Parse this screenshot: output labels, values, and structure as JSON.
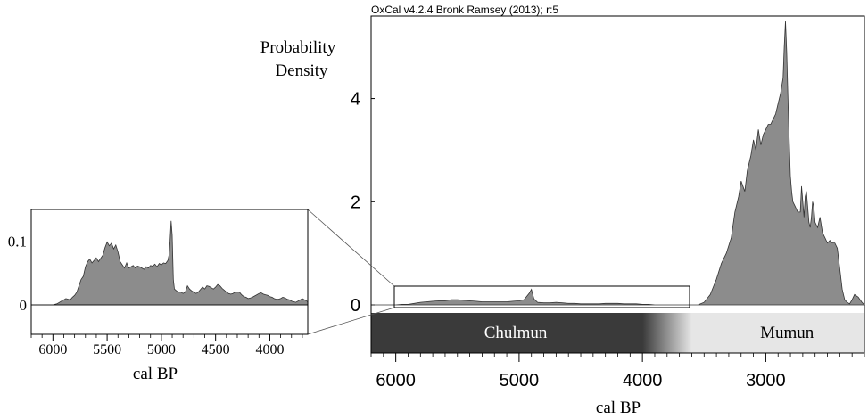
{
  "header": "OxCal v4.2.4 Bronk Ramsey (2013); r:5",
  "colors": {
    "fill": "#8c8c8c",
    "outline": "#333333",
    "chulmun_band": "#3a3a3a",
    "mumun_band": "#e6e6e6",
    "axis": "#000000"
  },
  "chart_data": [
    {
      "type": "area",
      "ylabel": "Probability\nDensity",
      "xlabel": "cal BP",
      "xlim": [
        6200,
        2200
      ],
      "ylim": [
        0,
        5.6
      ],
      "x_reversed": true,
      "x_ticks": [
        6000,
        5000,
        4000,
        3000
      ],
      "y_ticks": [
        0,
        2,
        4
      ],
      "x": [
        6200,
        6100,
        6000,
        5950,
        5900,
        5850,
        5800,
        5750,
        5700,
        5650,
        5600,
        5550,
        5500,
        5450,
        5400,
        5350,
        5300,
        5250,
        5200,
        5150,
        5100,
        5050,
        5000,
        4960,
        4920,
        4900,
        4880,
        4850,
        4800,
        4750,
        4700,
        4650,
        4600,
        4550,
        4500,
        4450,
        4400,
        4350,
        4300,
        4250,
        4200,
        4150,
        4100,
        4050,
        4000,
        3950,
        3900,
        3850,
        3800,
        3750,
        3700,
        3650,
        3600,
        3550,
        3500,
        3450,
        3400,
        3360,
        3320,
        3280,
        3250,
        3220,
        3200,
        3170,
        3150,
        3120,
        3100,
        3080,
        3060,
        3040,
        3020,
        3000,
        2980,
        2960,
        2940,
        2920,
        2900,
        2880,
        2860,
        2850,
        2840,
        2830,
        2820,
        2810,
        2800,
        2790,
        2780,
        2760,
        2740,
        2720,
        2710,
        2700,
        2690,
        2680,
        2670,
        2660,
        2650,
        2640,
        2630,
        2620,
        2610,
        2600,
        2580,
        2560,
        2540,
        2520,
        2500,
        2480,
        2460,
        2440,
        2420,
        2400,
        2380,
        2360,
        2340,
        2320,
        2300,
        2280,
        2250,
        2220,
        2200
      ],
      "values": [
        0.0,
        0.0,
        0.0,
        0.01,
        0.01,
        0.03,
        0.05,
        0.06,
        0.07,
        0.08,
        0.08,
        0.1,
        0.1,
        0.09,
        0.08,
        0.07,
        0.06,
        0.06,
        0.06,
        0.06,
        0.06,
        0.07,
        0.08,
        0.1,
        0.22,
        0.3,
        0.12,
        0.05,
        0.04,
        0.04,
        0.05,
        0.04,
        0.03,
        0.03,
        0.02,
        0.02,
        0.02,
        0.02,
        0.03,
        0.03,
        0.03,
        0.02,
        0.02,
        0.02,
        0.01,
        0.01,
        0.0,
        0.0,
        0.0,
        0.0,
        0.0,
        0.0,
        0.0,
        0.0,
        0.05,
        0.2,
        0.5,
        0.8,
        1.0,
        1.3,
        1.8,
        2.1,
        2.4,
        2.2,
        2.6,
        2.9,
        3.2,
        3.0,
        3.4,
        3.1,
        3.3,
        3.4,
        3.5,
        3.5,
        3.6,
        3.7,
        3.9,
        4.1,
        4.4,
        5.0,
        5.5,
        4.9,
        4.0,
        3.2,
        2.5,
        2.2,
        2.0,
        1.9,
        1.8,
        1.8,
        2.3,
        2.0,
        1.7,
        2.1,
        2.2,
        1.9,
        1.6,
        1.5,
        1.7,
        2.0,
        1.9,
        1.6,
        1.5,
        1.7,
        1.4,
        1.3,
        1.2,
        1.25,
        1.2,
        1.2,
        1.1,
        0.7,
        0.3,
        0.1,
        0.05,
        0.02,
        0.1,
        0.2,
        0.15,
        0.05,
        0.0
      ]
    },
    {
      "type": "area",
      "xlabel": "cal BP",
      "xlim": [
        6200,
        3650
      ],
      "ylim": [
        0,
        0.15
      ],
      "x_reversed": true,
      "x_ticks": [
        6000,
        5500,
        5000,
        4500,
        4000
      ],
      "y_ticks": [
        0,
        0.1
      ],
      "x": [
        6200,
        6100,
        6000,
        5960,
        5920,
        5900,
        5880,
        5860,
        5840,
        5820,
        5800,
        5780,
        5760,
        5740,
        5720,
        5700,
        5680,
        5660,
        5640,
        5620,
        5600,
        5580,
        5560,
        5540,
        5520,
        5500,
        5480,
        5460,
        5440,
        5420,
        5400,
        5380,
        5360,
        5340,
        5320,
        5300,
        5280,
        5260,
        5240,
        5220,
        5200,
        5180,
        5160,
        5140,
        5120,
        5100,
        5080,
        5060,
        5040,
        5020,
        5000,
        4980,
        4960,
        4940,
        4930,
        4920,
        4910,
        4900,
        4890,
        4880,
        4860,
        4840,
        4820,
        4800,
        4780,
        4760,
        4740,
        4720,
        4700,
        4680,
        4660,
        4640,
        4620,
        4600,
        4580,
        4560,
        4540,
        4520,
        4500,
        4480,
        4460,
        4440,
        4420,
        4400,
        4380,
        4360,
        4340,
        4320,
        4300,
        4280,
        4260,
        4240,
        4220,
        4200,
        4180,
        4160,
        4140,
        4120,
        4100,
        4080,
        4060,
        4040,
        4020,
        4000,
        3980,
        3960,
        3940,
        3920,
        3900,
        3880,
        3860,
        3840,
        3820,
        3800,
        3780,
        3760,
        3740,
        3720,
        3700,
        3680,
        3660,
        3650
      ],
      "values": [
        0.0,
        0.0,
        0.0,
        0.002,
        0.006,
        0.008,
        0.01,
        0.009,
        0.008,
        0.012,
        0.015,
        0.02,
        0.03,
        0.04,
        0.045,
        0.06,
        0.068,
        0.072,
        0.066,
        0.07,
        0.074,
        0.068,
        0.073,
        0.078,
        0.09,
        0.099,
        0.093,
        0.097,
        0.088,
        0.094,
        0.083,
        0.068,
        0.063,
        0.058,
        0.066,
        0.058,
        0.06,
        0.062,
        0.058,
        0.061,
        0.06,
        0.058,
        0.056,
        0.06,
        0.058,
        0.062,
        0.061,
        0.064,
        0.06,
        0.065,
        0.063,
        0.066,
        0.065,
        0.07,
        0.078,
        0.1,
        0.132,
        0.11,
        0.04,
        0.025,
        0.022,
        0.02,
        0.02,
        0.018,
        0.02,
        0.03,
        0.025,
        0.022,
        0.02,
        0.018,
        0.02,
        0.024,
        0.028,
        0.025,
        0.03,
        0.029,
        0.027,
        0.025,
        0.028,
        0.032,
        0.03,
        0.026,
        0.023,
        0.02,
        0.018,
        0.017,
        0.018,
        0.02,
        0.02,
        0.02,
        0.016,
        0.013,
        0.012,
        0.01,
        0.011,
        0.012,
        0.014,
        0.016,
        0.018,
        0.019,
        0.017,
        0.016,
        0.015,
        0.013,
        0.012,
        0.01,
        0.009,
        0.009,
        0.01,
        0.012,
        0.011,
        0.009,
        0.008,
        0.006,
        0.005,
        0.004,
        0.006,
        0.008,
        0.01,
        0.008,
        0.006,
        0.005
      ]
    }
  ],
  "periods": [
    {
      "name": "Chulmun",
      "from": 6200,
      "to": 4000
    },
    {
      "name": "Mumun",
      "from": 3600,
      "to": 2200
    }
  ]
}
